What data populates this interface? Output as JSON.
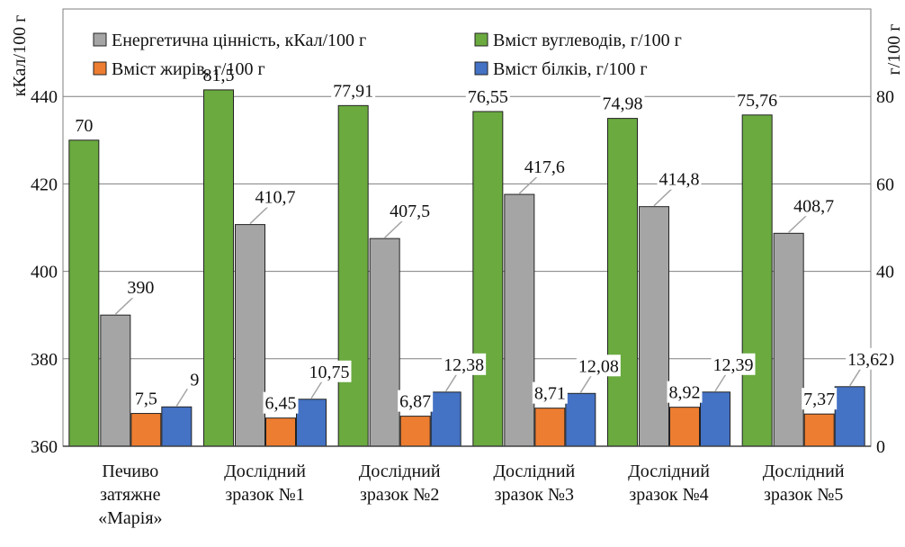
{
  "chart_data": {
    "type": "bar",
    "left_axis": {
      "title": "кКал/100 г",
      "ylim": [
        360,
        460
      ],
      "ticks": [
        360,
        380,
        400,
        420,
        440
      ],
      "tick_labels": [
        "360",
        "380",
        "400",
        "420",
        "440"
      ]
    },
    "right_axis": {
      "title": "г/100 г",
      "ylim": [
        0,
        100
      ],
      "ticks": [
        0,
        20,
        40,
        60,
        80
      ],
      "tick_labels": [
        "0",
        "20",
        "40",
        "60",
        "80"
      ]
    },
    "grid": true,
    "legend_position": "top",
    "categories": [
      [
        "Печиво",
        "затяжне",
        "«Марія»"
      ],
      [
        "Дослідний",
        "зразок №1"
      ],
      [
        "Дослідний",
        "зразок №2"
      ],
      [
        "Дослідний",
        "зразок №3"
      ],
      [
        "Дослідний",
        "зразок №4"
      ],
      [
        "Дослідний",
        "зразок №5"
      ]
    ],
    "series": [
      {
        "name": "Вміст вуглеводів, г/100 г",
        "axis": "right",
        "color": "#6aaa3f",
        "values": [
          70,
          81.5,
          77.91,
          76.55,
          74.98,
          75.76
        ],
        "labels": [
          "70",
          "81,5",
          "77,91",
          "76,55",
          "74,98",
          "75,76"
        ]
      },
      {
        "name": "Енергетична цінність, кКал/100 г",
        "axis": "left",
        "color": "#a5a5a5",
        "values": [
          390,
          410.7,
          407.5,
          417.6,
          414.8,
          408.7
        ],
        "labels": [
          "390",
          "410,7",
          "407,5",
          "417,6",
          "414,8",
          "408,7"
        ]
      },
      {
        "name": "Вміст жирів, г/100 г",
        "axis": "right",
        "color": "#ed7d31",
        "values": [
          7.5,
          6.45,
          6.87,
          8.71,
          8.92,
          7.37
        ],
        "labels": [
          "7,5",
          "6,45",
          "6,87",
          "8,71",
          "8,92",
          "7,37"
        ]
      },
      {
        "name": "Вміст білків, г/100 г",
        "axis": "right",
        "color": "#4472c4",
        "values": [
          9,
          10.75,
          12.38,
          12.08,
          12.39,
          13.62
        ],
        "labels": [
          "9",
          "10,75",
          "12,38",
          "12,08",
          "12,39",
          "13,62"
        ]
      }
    ],
    "legend": [
      {
        "series": 1,
        "label": "Енергетична цінність, кКал/100 г"
      },
      {
        "series": 0,
        "label": "Вміст вуглеводів, г/100 г"
      },
      {
        "series": 2,
        "label": "Вміст жирів, г/100 г"
      },
      {
        "series": 3,
        "label": "Вміст білків, г/100 г"
      }
    ]
  }
}
